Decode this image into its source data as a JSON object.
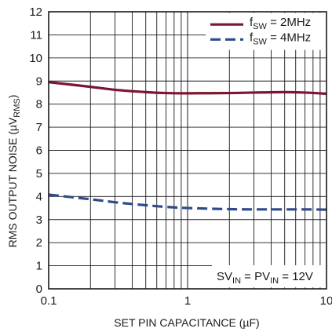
{
  "chart_data": {
    "type": "line",
    "xscale": "log",
    "xlim": [
      0.1,
      10
    ],
    "ylim": [
      0,
      12
    ],
    "grid": true,
    "xlabel": "SET PIN CAPACITANCE (µF)",
    "ylabel": {
      "main": "RMS OUTPUT NOISE (µV",
      "sub": "RMS",
      "tail": ")"
    },
    "x_ticks": [
      0.1,
      1,
      10
    ],
    "x_tick_labels": [
      "0.1",
      "1",
      "10"
    ],
    "y_ticks": [
      0,
      1,
      2,
      3,
      4,
      5,
      6,
      7,
      8,
      9,
      10,
      11,
      12
    ],
    "y_tick_labels": [
      "0",
      "1",
      "2",
      "3",
      "4",
      "5",
      "6",
      "7",
      "8",
      "9",
      "10",
      "11",
      "12"
    ],
    "legend_position": "top-right",
    "series": [
      {
        "name": {
          "main": "f",
          "sub": "SW",
          "tail": " = 2MHz"
        },
        "color": "#7b1530",
        "style": "solid",
        "x": [
          0.1,
          0.2,
          0.3,
          0.5,
          0.7,
          1,
          2,
          3,
          5,
          7,
          10
        ],
        "y": [
          8.95,
          8.75,
          8.62,
          8.52,
          8.48,
          8.47,
          8.48,
          8.5,
          8.52,
          8.5,
          8.45
        ]
      },
      {
        "name": {
          "main": "f",
          "sub": "SW",
          "tail": " = 4MHz"
        },
        "color": "#2f4a8c",
        "style": "dashed",
        "x": [
          0.1,
          0.2,
          0.3,
          0.5,
          0.7,
          1,
          2,
          3,
          5,
          7,
          10
        ],
        "y": [
          4.08,
          3.88,
          3.75,
          3.62,
          3.55,
          3.5,
          3.45,
          3.44,
          3.44,
          3.44,
          3.43
        ]
      }
    ],
    "annotation": {
      "parts": [
        {
          "t": "SV"
        },
        {
          "t": "IN",
          "sub": true
        },
        {
          "t": " = PV"
        },
        {
          "t": "IN",
          "sub": true
        },
        {
          "t": " = 12V"
        }
      ]
    }
  }
}
